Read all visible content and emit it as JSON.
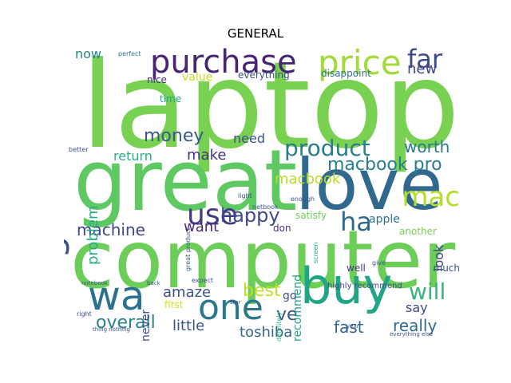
{
  "title": "GENERAL",
  "palette": [
    "#440154",
    "#3b528b",
    "#2c728e",
    "#21918c",
    "#28ae80",
    "#5ec962",
    "#addc30",
    "#fde725"
  ],
  "words": [
    {
      "text": "laptop",
      "color": "#79d151"
    },
    {
      "text": "computer",
      "color": "#6dcd59"
    },
    {
      "text": "great",
      "color": "#5ec962"
    },
    {
      "text": "love",
      "color": "#31688e"
    },
    {
      "text": "buy",
      "color": "#21a585"
    },
    {
      "text": "wa",
      "color": "#2c728e"
    },
    {
      "text": "good",
      "color": "#3b528b"
    },
    {
      "text": "purchase",
      "color": "#482475"
    },
    {
      "text": "price",
      "color": "#a2da37"
    },
    {
      "text": "one",
      "color": "#2a788e"
    },
    {
      "text": "far",
      "color": "#3e4989"
    },
    {
      "text": "product",
      "color": "#287d8e"
    },
    {
      "text": "use",
      "color": "#443a83"
    },
    {
      "text": "mac",
      "color": "#b5de2b"
    },
    {
      "text": "ha",
      "color": "#30698e"
    },
    {
      "text": "happy",
      "color": "#3e4a89"
    },
    {
      "text": "macbook pro",
      "color": "#277f8e"
    },
    {
      "text": "will",
      "color": "#35b779"
    },
    {
      "text": "money",
      "color": "#38588c"
    },
    {
      "text": "overall",
      "color": "#25848e"
    },
    {
      "text": "really",
      "color": "#31688e"
    },
    {
      "text": "best",
      "color": "#c0df25"
    },
    {
      "text": "machine",
      "color": "#404688"
    },
    {
      "text": "worth",
      "color": "#2a788e"
    },
    {
      "text": "fast",
      "color": "#32648e"
    },
    {
      "text": "ve",
      "color": "#3b528b"
    },
    {
      "text": "toshiba",
      "color": "#31688e"
    },
    {
      "text": "little",
      "color": "#3b528b"
    },
    {
      "text": "new",
      "color": "#3f4788"
    },
    {
      "text": "make",
      "color": "#46327e"
    },
    {
      "text": "problem",
      "color": "#26ad81"
    },
    {
      "text": "say",
      "color": "#3e4989"
    },
    {
      "text": "amaze",
      "color": "#3b528b"
    },
    {
      "text": "need",
      "color": "#3b528b"
    },
    {
      "text": "macbook",
      "color": "#b8de29"
    },
    {
      "text": "return",
      "color": "#27ad81"
    },
    {
      "text": "want",
      "color": "#482878"
    },
    {
      "text": "now",
      "color": "#25848e"
    },
    {
      "text": "look",
      "color": "#404688"
    },
    {
      "text": "value",
      "color": "#c2df23"
    },
    {
      "text": "recommend",
      "color": "#20a486"
    },
    {
      "text": "never",
      "color": "#414487"
    },
    {
      "text": "apple",
      "color": "#2a788e"
    },
    {
      "text": "satisfy",
      "color": "#6ece58"
    },
    {
      "text": "everything",
      "color": "#3b528b"
    },
    {
      "text": "disappoint",
      "color": "#2c728e"
    },
    {
      "text": "time",
      "color": "#20a486"
    },
    {
      "text": "nice",
      "color": "#482878"
    },
    {
      "text": "go",
      "color": "#3b528b"
    },
    {
      "text": "first",
      "color": "#d8e219"
    },
    {
      "text": "much",
      "color": "#3b528b"
    },
    {
      "text": "well",
      "color": "#443983"
    },
    {
      "text": "another",
      "color": "#7ad151"
    },
    {
      "text": "don",
      "color": "#46327e"
    },
    {
      "text": "highly recommend",
      "color": "#3e4a89"
    },
    {
      "text": "expect",
      "color": "#3b528b"
    },
    {
      "text": "perfect",
      "color": "#2c728e"
    },
    {
      "text": "enough",
      "color": "#3b528b"
    },
    {
      "text": "light",
      "color": "#3b528b"
    },
    {
      "text": "netbook",
      "color": "#3b528b"
    },
    {
      "text": "definitely",
      "color": "#35b779"
    },
    {
      "text": "give",
      "color": "#3b528b"
    },
    {
      "text": "better",
      "color": "#3b528b"
    },
    {
      "text": "great product",
      "color": "#3b528b"
    },
    {
      "text": "right",
      "color": "#3b528b"
    },
    {
      "text": "notebook",
      "color": "#3b528b"
    },
    {
      "text": "star",
      "color": "#3b528b"
    },
    {
      "text": "year",
      "color": "#3b528b"
    },
    {
      "text": "back",
      "color": "#3b528b"
    },
    {
      "text": "screen",
      "color": "#20a486"
    },
    {
      "text": "thing nothing",
      "color": "#3b528b"
    },
    {
      "text": "everything else",
      "color": "#3b528b"
    }
  ]
}
